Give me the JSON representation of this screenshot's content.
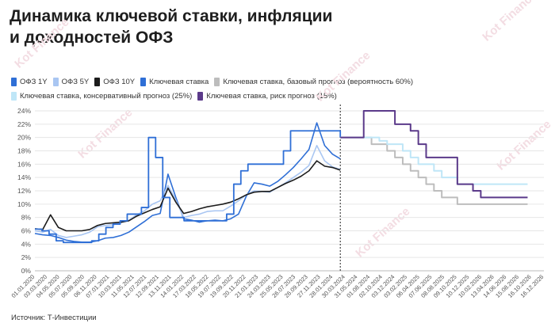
{
  "title_line1": "Динамика ключевой ставки, инфляции",
  "title_line2": "и доходностей ОФЗ",
  "source": "Источник: Т-Инвестиции",
  "watermark": "Kot Finance",
  "chart_data": {
    "type": "line",
    "ylim": [
      0,
      24
    ],
    "yticks": [
      "0%",
      "2%",
      "4%",
      "6%",
      "8%",
      "10%",
      "12%",
      "14%",
      "16%",
      "18%",
      "20%",
      "22%",
      "24%"
    ],
    "grid": true,
    "legend_position": "top",
    "forecast_start_index": 60,
    "x_tick_labels": [
      "01.01.2020",
      "03.03.2020",
      "04.05.2020",
      "05.07.2020",
      "05.09.2020",
      "06.11.2020",
      "07.01.2021",
      "10.03.2021",
      "11.05.2021",
      "12.07.2021",
      "12.09.2021",
      "13.11.2021",
      "14.01.2022",
      "17.03.2022",
      "18.05.2022",
      "19.07.2022",
      "19.09.2022",
      "20.11.2022",
      "21.01.2023",
      "24.03.2023",
      "25.05.2023",
      "26.07.2023",
      "26.09.2023",
      "27.11.2023",
      "28.01.2024",
      "30.03.2024",
      "31.05.2024",
      "01.08.2024",
      "02.10.2024",
      "03.12.2024",
      "03.02.2025",
      "06.04.2025",
      "07.06.2025",
      "08.08.2025",
      "09.10.2025",
      "10.12.2025",
      "10.02.2026",
      "13.04.2026",
      "14.06.2026",
      "15.08.2026",
      "16.10.2026",
      "16.12.2026"
    ],
    "series": [
      {
        "name": "ОФЗ 1Y",
        "color": "#2f6fd6",
        "values": [
          5.6,
          5.4,
          5.3,
          5.0,
          4.6,
          4.4,
          4.3,
          4.3,
          4.5,
          4.9,
          5.0,
          5.3,
          5.8,
          6.6,
          7.4,
          8.3,
          8.6,
          14.5,
          11.0,
          7.8,
          7.6,
          7.3,
          7.5,
          7.6,
          7.5,
          7.8,
          8.5,
          11.2,
          13.2,
          13.0,
          12.7,
          13.4,
          14.4,
          15.5,
          16.8,
          18.2,
          22.2,
          18.8,
          17.5,
          16.8
        ]
      },
      {
        "name": "ОФЗ 5Y",
        "color": "#a9c6f2",
        "values": [
          6.0,
          5.8,
          6.2,
          5.3,
          5.0,
          5.2,
          5.4,
          5.8,
          6.6,
          6.8,
          6.9,
          7.2,
          7.6,
          8.4,
          9.0,
          10.0,
          10.5,
          12.8,
          10.6,
          8.0,
          8.3,
          8.5,
          8.9,
          9.0,
          9.0,
          9.7,
          10.5,
          11.4,
          12.0,
          11.9,
          11.8,
          12.5,
          13.2,
          14.0,
          14.8,
          15.8,
          18.8,
          16.5,
          15.6,
          15.2
        ]
      },
      {
        "name": "ОФЗ 10Y",
        "color": "#1c1c1c",
        "values": [
          6.3,
          6.2,
          8.4,
          6.5,
          6.0,
          6.0,
          6.0,
          6.2,
          6.8,
          7.1,
          7.2,
          7.3,
          7.5,
          8.2,
          8.7,
          9.2,
          9.6,
          12.4,
          10.3,
          8.6,
          8.9,
          9.3,
          9.6,
          9.8,
          10.0,
          10.3,
          10.8,
          11.4,
          11.8,
          11.9,
          11.9,
          12.5,
          13.1,
          13.6,
          14.2,
          15.0,
          16.5,
          15.7,
          15.5,
          15.1
        ]
      },
      {
        "name": "Ключевая ставка",
        "color": "#2f6fd6",
        "values": [
          6.25,
          6.0,
          5.5,
          4.5,
          4.25,
          4.25,
          4.25,
          4.25,
          4.5,
          5.5,
          6.5,
          7.0,
          7.5,
          8.5,
          8.5,
          9.5,
          20.0,
          17.0,
          11.0,
          8.0,
          8.0,
          7.5,
          7.5,
          7.5,
          7.5,
          7.5,
          7.5,
          8.5,
          13.0,
          15.0,
          16.0,
          16.0,
          16.0,
          16.0,
          16.0,
          18.0,
          21.0,
          21.0,
          21.0,
          21.0,
          21.0,
          21.0,
          21.0,
          20.0
        ]
      },
      {
        "name": "Ключевая ставка, базовый прогноз (вероятность 60%)",
        "color": "#bdbdbd",
        "values": [
          20,
          20,
          20,
          20,
          19,
          19,
          18,
          17,
          16,
          15,
          14,
          13,
          12,
          11,
          11,
          10,
          10,
          10,
          10,
          10,
          10,
          10,
          10,
          10,
          10
        ]
      },
      {
        "name": "Ключевая ставка, консервативный прогноз (25%)",
        "color": "#bfe6f7",
        "values": [
          20,
          20,
          20,
          20,
          20,
          19.5,
          19,
          19,
          18,
          17,
          16,
          16,
          15,
          14,
          14,
          13,
          13,
          13,
          13,
          13,
          13,
          13,
          13,
          13,
          13
        ]
      },
      {
        "name": "Ключевая ставка, риск прогноз (15%)",
        "color": "#5b3a8a",
        "values": [
          20,
          20,
          20,
          24,
          24,
          24,
          24,
          22,
          22,
          21,
          19,
          17,
          17,
          17,
          17,
          13,
          13,
          12,
          11,
          11,
          11,
          11,
          11,
          11,
          11
        ]
      }
    ]
  }
}
